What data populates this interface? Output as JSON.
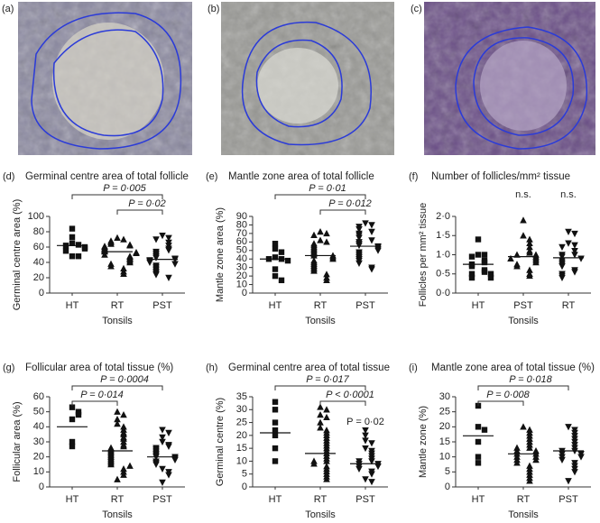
{
  "images": [
    {
      "label": "(a)"
    },
    {
      "label": "(b)"
    },
    {
      "label": "(c)"
    }
  ],
  "chart_data": [
    {
      "type": "dot",
      "panel": "(d)",
      "title": "Germinal centre area of total follicle",
      "ylabel": "Germinal centre area (%)",
      "xlabel": "Tonsils",
      "categories": [
        "HT",
        "RT",
        "PST"
      ],
      "ylim": [
        0,
        100
      ],
      "yticks": [
        0,
        20,
        40,
        60,
        80,
        100
      ],
      "groups": [
        {
          "marker": "square",
          "median": 62,
          "values": [
            84,
            73,
            65,
            63,
            62,
            60,
            58,
            55,
            48,
            48
          ]
        },
        {
          "marker": "triangle-up",
          "median": 54,
          "values": [
            72,
            70,
            68,
            66,
            64,
            63,
            62,
            61,
            60,
            58,
            57,
            56,
            55,
            54,
            53,
            52,
            50,
            48,
            47,
            45,
            44,
            42,
            40,
            38,
            35,
            32,
            28,
            25
          ]
        },
        {
          "marker": "triangle-down",
          "median": 44,
          "values": [
            75,
            72,
            70,
            66,
            62,
            58,
            56,
            54,
            52,
            50,
            48,
            46,
            45,
            44,
            43,
            42,
            40,
            38,
            36,
            34,
            32,
            30,
            28,
            26,
            24,
            20
          ]
        }
      ],
      "annotations": [
        {
          "text": "P = 0·005",
          "from": 0,
          "to": 2
        },
        {
          "text": "P = 0·02",
          "from": 1,
          "to": 2
        }
      ]
    },
    {
      "type": "dot",
      "panel": "(e)",
      "title": "Mantle zone area of total follicle",
      "ylabel": "Mantle zone area (%)",
      "xlabel": "Tonsils",
      "categories": [
        "HT",
        "RT",
        "PST"
      ],
      "ylim": [
        0,
        90
      ],
      "yticks": [
        0,
        10,
        20,
        30,
        40,
        50,
        60,
        70,
        80,
        90
      ],
      "groups": [
        {
          "marker": "square",
          "median": 40,
          "values": [
            58,
            52,
            48,
            42,
            40,
            40,
            38,
            28,
            20,
            15
          ]
        },
        {
          "marker": "triangle-up",
          "median": 44,
          "values": [
            72,
            70,
            68,
            62,
            60,
            58,
            56,
            54,
            52,
            50,
            48,
            46,
            44,
            44,
            42,
            40,
            38,
            36,
            34,
            32,
            30,
            28,
            26,
            22,
            18,
            15
          ]
        },
        {
          "marker": "triangle-down",
          "median": 55,
          "values": [
            82,
            80,
            78,
            75,
            72,
            70,
            68,
            65,
            62,
            60,
            58,
            56,
            55,
            54,
            52,
            50,
            48,
            46,
            44,
            42,
            40,
            38,
            35,
            30,
            28
          ]
        }
      ],
      "annotations": [
        {
          "text": "P = 0·01",
          "from": 0,
          "to": 2
        },
        {
          "text": "P = 0·012",
          "from": 1,
          "to": 2
        }
      ]
    },
    {
      "type": "dot",
      "panel": "(f)",
      "title": "Number of follicles/mm² tissue",
      "ylabel": "Follicles per mm² tissue",
      "xlabel": "Tonsils",
      "categories": [
        "HT",
        "PST",
        "RT"
      ],
      "ylim": [
        0,
        2
      ],
      "yticks": [
        {
          "value": 0,
          "label": "0·0"
        },
        {
          "value": 0.5,
          "label": "0·5"
        },
        {
          "value": 1,
          "label": "1·0"
        },
        {
          "value": 1.5,
          "label": "1·5"
        },
        {
          "value": 2,
          "label": "2·0"
        }
      ],
      "groups": [
        {
          "marker": "square",
          "median": 0.75,
          "values": [
            1.4,
            1.0,
            1.0,
            0.95,
            0.85,
            0.8,
            0.75,
            0.7,
            0.6,
            0.55,
            0.5,
            0.5,
            0.4,
            0.4
          ]
        },
        {
          "marker": "triangle-up",
          "median": 0.95,
          "values": [
            1.9,
            1.5,
            1.4,
            1.3,
            1.2,
            1.1,
            1.05,
            1.0,
            1.0,
            0.95,
            0.9,
            0.9,
            0.85,
            0.8,
            0.75,
            0.7,
            0.6,
            0.5,
            0.45
          ]
        },
        {
          "marker": "triangle-down",
          "median": 0.92,
          "values": [
            1.6,
            1.55,
            1.3,
            1.25,
            1.2,
            1.1,
            1.0,
            1.0,
            0.95,
            0.9,
            0.85,
            0.8,
            0.75,
            0.7,
            0.6,
            0.55,
            0.5,
            0.45,
            0.4
          ]
        }
      ],
      "annotations": [
        {
          "text": "n.s.",
          "at": 1
        },
        {
          "text": "n.s.",
          "at": 2
        }
      ]
    },
    {
      "type": "dot",
      "panel": "(g)",
      "title": "Follicular area of total tissue (%)",
      "ylabel": "Follicular area (%)",
      "xlabel": "Tonsils",
      "categories": [
        "HT",
        "RT",
        "PST"
      ],
      "ylim": [
        0,
        60
      ],
      "yticks": [
        0,
        10,
        20,
        30,
        40,
        50,
        60
      ],
      "groups": [
        {
          "marker": "square",
          "median": 40,
          "values": [
            53,
            50,
            48,
            45,
            30,
            27
          ]
        },
        {
          "marker": "triangle-up",
          "median": 24,
          "values": [
            50,
            48,
            45,
            42,
            40,
            38,
            36,
            35,
            33,
            32,
            30,
            28,
            27,
            26,
            25,
            24,
            23,
            22,
            21,
            20,
            19,
            18,
            17,
            16,
            15,
            14,
            12,
            10,
            8,
            5
          ]
        },
        {
          "marker": "triangle-down",
          "median": 20,
          "values": [
            38,
            36,
            33,
            30,
            28,
            27,
            26,
            25,
            24,
            23,
            22,
            21,
            20,
            20,
            19,
            18,
            17,
            16,
            15,
            12,
            10,
            8,
            3
          ]
        }
      ],
      "annotations": [
        {
          "text": "P = 0·0004",
          "from": 0,
          "to": 2
        },
        {
          "text": "P = 0·014",
          "from": 0,
          "to": 1
        }
      ]
    },
    {
      "type": "dot",
      "panel": "(h)",
      "title": "Germinal centre area of total tissue",
      "ylabel": "Germinal centre (%)",
      "xlabel": "Tonsils",
      "categories": [
        "HT",
        "RT",
        "PST"
      ],
      "ylim": [
        0,
        35
      ],
      "yticks": [
        0,
        5,
        10,
        15,
        20,
        25,
        30,
        35
      ],
      "groups": [
        {
          "marker": "square",
          "median": 21,
          "values": [
            33,
            30,
            25,
            22,
            20,
            15,
            10
          ]
        },
        {
          "marker": "triangle-up",
          "median": 13,
          "values": [
            31,
            30,
            28,
            27,
            25,
            23,
            22,
            21,
            20,
            19,
            18,
            17,
            16,
            15,
            14,
            13,
            12,
            11,
            10,
            10,
            9,
            8,
            7,
            6,
            5,
            4,
            3
          ]
        },
        {
          "marker": "triangle-down",
          "median": 9,
          "values": [
            22,
            20,
            18,
            17,
            15,
            14,
            13,
            12,
            11,
            10,
            10,
            9,
            9,
            8,
            8,
            7,
            6,
            5,
            3,
            2
          ]
        }
      ],
      "annotations": [
        {
          "text": "P = 0·017",
          "from": 0,
          "to": 2
        },
        {
          "text": "P < 0·0001",
          "from": 1,
          "to": 2
        },
        {
          "text": "P = 0·02",
          "at": 2
        }
      ]
    },
    {
      "type": "dot",
      "panel": "(i)",
      "title": "Mantle zone area of total tissue (%)",
      "ylabel": "Mantle zone (%)",
      "xlabel": "Tonsils",
      "categories": [
        "HT",
        "RT",
        "PST"
      ],
      "ylim": [
        0,
        30
      ],
      "yticks": [
        0,
        5,
        10,
        15,
        20,
        25,
        30
      ],
      "groups": [
        {
          "marker": "square",
          "median": 17,
          "values": [
            27,
            20,
            19,
            15,
            10,
            8
          ]
        },
        {
          "marker": "triangle-up",
          "median": 11,
          "values": [
            20,
            19,
            18,
            17,
            16,
            15,
            14,
            13,
            13,
            12,
            12,
            11,
            11,
            10,
            10,
            9,
            9,
            8,
            7,
            6,
            5,
            4,
            3,
            2
          ]
        },
        {
          "marker": "triangle-down",
          "median": 12,
          "values": [
            20,
            19,
            18,
            17,
            16,
            15,
            14,
            13,
            12,
            12,
            11,
            11,
            10,
            10,
            9,
            8,
            7,
            6,
            5,
            2
          ]
        }
      ],
      "annotations": [
        {
          "text": "P = 0·018",
          "from": 0,
          "to": 2
        },
        {
          "text": "P = 0·008",
          "from": 0,
          "to": 1
        }
      ]
    }
  ]
}
